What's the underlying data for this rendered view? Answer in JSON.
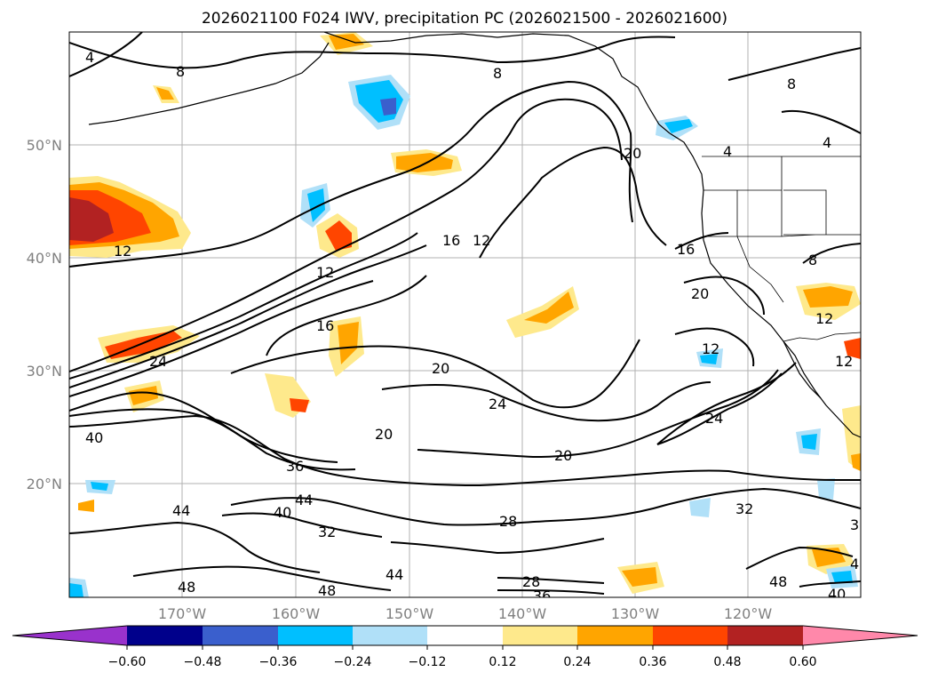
{
  "title": "2026021100 F024 IWV, precipitation PC (2026021500 - 2026021600)",
  "lat_labels": [
    "50°N",
    "40°N",
    "30°N",
    "20°N"
  ],
  "lon_labels": [
    "170°W",
    "160°W",
    "150°W",
    "140°W",
    "130°W",
    "120°W"
  ],
  "colorbar": {
    "tick_labels": [
      "−0.60",
      "−0.48",
      "−0.36",
      "−0.24",
      "−0.12",
      "0.12",
      "0.24",
      "0.36",
      "0.48",
      "0.60"
    ],
    "colors": [
      "#9932cc",
      "#00008b",
      "#3a5fcd",
      "#00bfff",
      "#b0e0f8",
      "#ffffff",
      "#fee98c",
      "#ffa500",
      "#ff4500",
      "#b22222",
      "#ff88aa"
    ]
  },
  "contour_labels": [
    {
      "text": "4"
    },
    {
      "text": "8"
    },
    {
      "text": "8"
    },
    {
      "text": "8"
    },
    {
      "text": "4"
    },
    {
      "text": "4"
    },
    {
      "text": "20"
    },
    {
      "text": "12"
    },
    {
      "text": "16"
    },
    {
      "text": "12"
    },
    {
      "text": "12"
    },
    {
      "text": "16"
    },
    {
      "text": "16"
    },
    {
      "text": "20"
    },
    {
      "text": "12"
    },
    {
      "text": "8"
    },
    {
      "text": "12"
    },
    {
      "text": "24"
    },
    {
      "text": "20"
    },
    {
      "text": "24"
    },
    {
      "text": "20"
    },
    {
      "text": "20"
    },
    {
      "text": "24"
    },
    {
      "text": "40"
    },
    {
      "text": "36"
    },
    {
      "text": "44"
    },
    {
      "text": "40"
    },
    {
      "text": "44"
    },
    {
      "text": "32"
    },
    {
      "text": "28"
    },
    {
      "text": "32"
    },
    {
      "text": "44"
    },
    {
      "text": "48"
    },
    {
      "text": "28"
    },
    {
      "text": "36"
    },
    {
      "text": "48"
    },
    {
      "text": "48"
    },
    {
      "text": "40"
    },
    {
      "text": "4"
    },
    {
      "text": "3"
    },
    {
      "text": "12"
    }
  ]
}
